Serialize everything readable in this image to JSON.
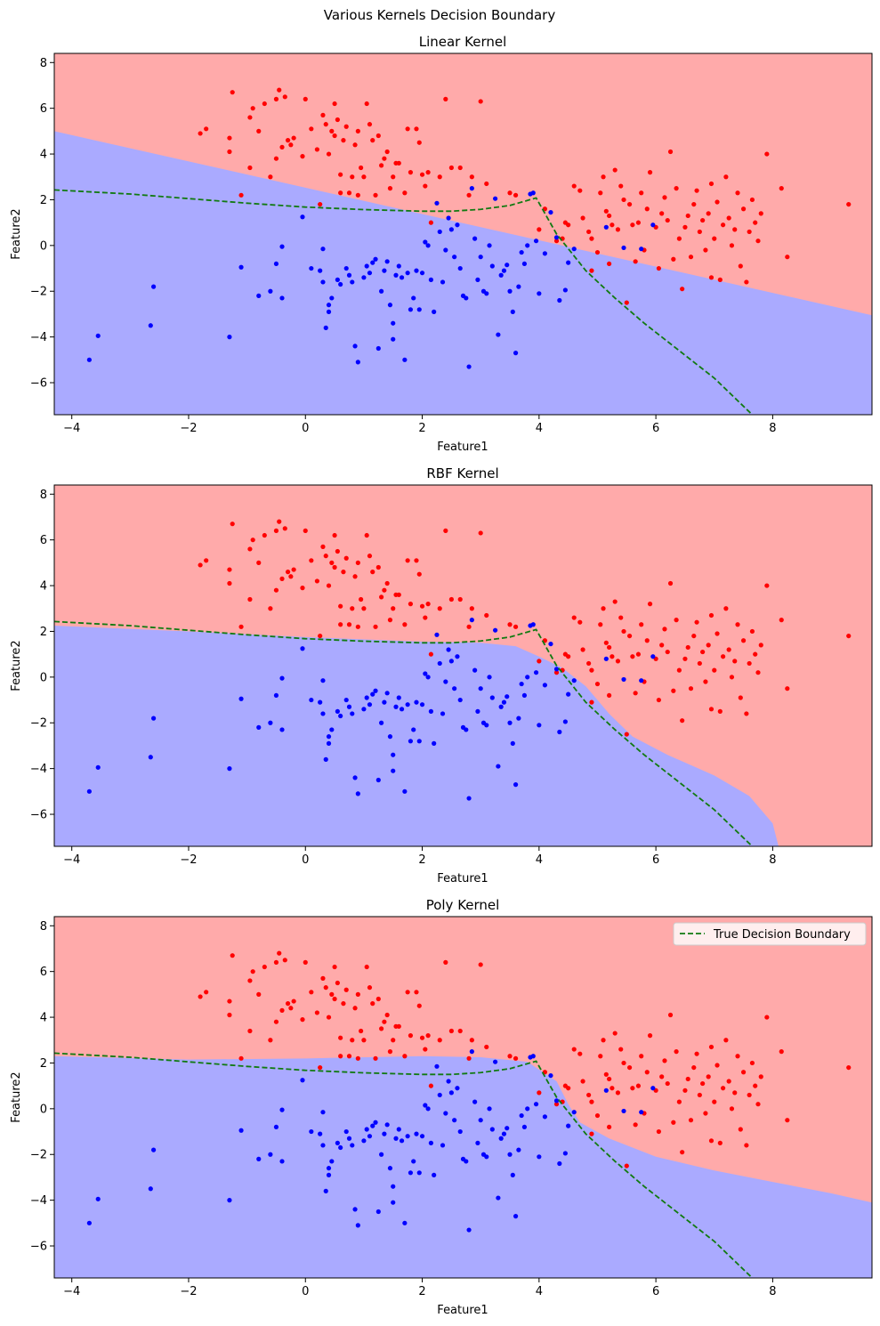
{
  "figure": {
    "suptitle": "Various Kernels Decision Boundary"
  },
  "colors": {
    "class0_region": "#aaaaff",
    "class1_region": "#ffaaaa",
    "class0_point": "#0000ff",
    "class1_point": "#ff0000",
    "true_boundary": "#117a11"
  },
  "legend": {
    "label": "True Decision Boundary",
    "placement": "upper right of bottom panel"
  },
  "chart_data": [
    {
      "type": "scatter",
      "title": "Linear Kernel",
      "xlabel": "Feature1",
      "ylabel": "Feature2",
      "xlim": [
        -4.3,
        9.7
      ],
      "ylim": [
        -7.4,
        8.4
      ],
      "xticks": [
        -4,
        -2,
        0,
        2,
        4,
        6,
        8
      ],
      "yticks": [
        -6,
        -4,
        -2,
        0,
        2,
        4,
        6,
        8
      ],
      "decision_boundary": [
        [
          -4.3,
          5.0
        ],
        [
          9.7,
          -3.05
        ]
      ]
    },
    {
      "type": "scatter",
      "title": "RBF Kernel",
      "xlabel": "Feature1",
      "ylabel": "Feature2",
      "xlim": [
        -4.3,
        9.7
      ],
      "ylim": [
        -7.4,
        8.4
      ],
      "xticks": [
        -4,
        -2,
        0,
        2,
        4,
        6,
        8
      ],
      "yticks": [
        -6,
        -4,
        -2,
        0,
        2,
        4,
        6,
        8
      ],
      "decision_boundary": [
        [
          -4.3,
          2.25
        ],
        [
          -2,
          2.0
        ],
        [
          0,
          1.75
        ],
        [
          2,
          1.55
        ],
        [
          3,
          1.5
        ],
        [
          3.6,
          1.35
        ],
        [
          4.0,
          0.9
        ],
        [
          4.4,
          0.4
        ],
        [
          4.8,
          -0.4
        ],
        [
          5.2,
          -1.6
        ],
        [
          5.6,
          -2.6
        ],
        [
          6.2,
          -3.4
        ],
        [
          7.0,
          -4.3
        ],
        [
          7.6,
          -5.2
        ],
        [
          8.0,
          -6.4
        ],
        [
          8.1,
          -7.4
        ]
      ]
    },
    {
      "type": "scatter",
      "title": "Poly Kernel",
      "xlabel": "Feature1",
      "ylabel": "Feature2",
      "xlim": [
        -4.3,
        9.7
      ],
      "ylim": [
        -7.4,
        8.4
      ],
      "xticks": [
        -4,
        -2,
        0,
        2,
        4,
        6,
        8
      ],
      "yticks": [
        -6,
        -4,
        -2,
        0,
        2,
        4,
        6,
        8
      ],
      "decision_boundary": [
        [
          -4.3,
          2.3
        ],
        [
          -2,
          2.15
        ],
        [
          0,
          2.2
        ],
        [
          2,
          2.3
        ],
        [
          3,
          2.25
        ],
        [
          3.8,
          2.05
        ],
        [
          4.3,
          1.2
        ],
        [
          4.5,
          0.2
        ],
        [
          4.7,
          -0.6
        ],
        [
          5.2,
          -1.3
        ],
        [
          6,
          -2.1
        ],
        [
          7,
          -2.7
        ],
        [
          8,
          -3.2
        ],
        [
          9,
          -3.7
        ],
        [
          9.7,
          -4.1
        ]
      ]
    }
  ],
  "true_boundary": [
    [
      -4.3,
      2.43
    ],
    [
      -3,
      2.25
    ],
    [
      -2,
      2.05
    ],
    [
      -1,
      1.85
    ],
    [
      0,
      1.68
    ],
    [
      1,
      1.57
    ],
    [
      2,
      1.5
    ],
    [
      2.5,
      1.5
    ],
    [
      3,
      1.58
    ],
    [
      3.5,
      1.75
    ],
    [
      3.95,
      2.08
    ],
    [
      4.3,
      0.5
    ],
    [
      4.8,
      -1.1
    ],
    [
      5.3,
      -2.3
    ],
    [
      5.8,
      -3.4
    ],
    [
      6.4,
      -4.6
    ],
    [
      7.0,
      -5.8
    ],
    [
      7.65,
      -7.4
    ]
  ],
  "points": {
    "red": [
      [
        -1.8,
        4.9
      ],
      [
        -1.7,
        5.1
      ],
      [
        -1.3,
        4.7
      ],
      [
        -1.3,
        4.1
      ],
      [
        -1.25,
        6.7
      ],
      [
        -1.1,
        2.2
      ],
      [
        -0.95,
        3.4
      ],
      [
        -0.95,
        5.6
      ],
      [
        -0.9,
        6.0
      ],
      [
        -0.8,
        5.0
      ],
      [
        -0.7,
        6.2
      ],
      [
        -0.6,
        3.0
      ],
      [
        -0.5,
        6.4
      ],
      [
        -0.5,
        3.8
      ],
      [
        -0.45,
        6.8
      ],
      [
        -0.4,
        4.3
      ],
      [
        -0.35,
        6.5
      ],
      [
        -0.3,
        4.6
      ],
      [
        -0.25,
        4.4
      ],
      [
        -0.2,
        4.7
      ],
      [
        -0.05,
        3.9
      ],
      [
        0.0,
        6.4
      ],
      [
        0.1,
        5.1
      ],
      [
        0.2,
        4.2
      ],
      [
        0.25,
        1.8
      ],
      [
        0.3,
        5.7
      ],
      [
        0.35,
        5.3
      ],
      [
        0.4,
        4.0
      ],
      [
        0.45,
        5.0
      ],
      [
        0.5,
        6.2
      ],
      [
        0.5,
        4.8
      ],
      [
        0.55,
        5.5
      ],
      [
        0.6,
        2.3
      ],
      [
        0.6,
        3.1
      ],
      [
        0.65,
        4.6
      ],
      [
        0.7,
        5.2
      ],
      [
        0.75,
        2.3
      ],
      [
        0.8,
        3.0
      ],
      [
        0.85,
        4.4
      ],
      [
        0.9,
        2.2
      ],
      [
        0.9,
        5.0
      ],
      [
        0.95,
        3.4
      ],
      [
        1.0,
        3.0
      ],
      [
        1.05,
        6.2
      ],
      [
        1.1,
        5.3
      ],
      [
        1.15,
        4.6
      ],
      [
        1.2,
        2.2
      ],
      [
        1.25,
        4.8
      ],
      [
        1.3,
        3.5
      ],
      [
        1.35,
        3.8
      ],
      [
        1.4,
        4.1
      ],
      [
        1.45,
        2.5
      ],
      [
        1.5,
        3.0
      ],
      [
        1.55,
        3.6
      ],
      [
        1.6,
        3.6
      ],
      [
        1.7,
        2.3
      ],
      [
        1.75,
        5.1
      ],
      [
        1.8,
        3.2
      ],
      [
        1.9,
        5.1
      ],
      [
        1.95,
        4.5
      ],
      [
        2.0,
        3.1
      ],
      [
        2.05,
        2.6
      ],
      [
        2.1,
        3.2
      ],
      [
        2.15,
        1.0
      ],
      [
        2.3,
        3.0
      ],
      [
        2.4,
        6.4
      ],
      [
        2.5,
        3.4
      ],
      [
        2.65,
        3.4
      ],
      [
        2.8,
        2.2
      ],
      [
        2.85,
        3.0
      ],
      [
        3.0,
        6.3
      ],
      [
        3.1,
        2.7
      ],
      [
        3.5,
        2.3
      ],
      [
        3.6,
        2.2
      ],
      [
        4.0,
        0.7
      ],
      [
        4.1,
        1.6
      ],
      [
        4.3,
        0.2
      ],
      [
        4.4,
        0.3
      ],
      [
        4.45,
        1.0
      ],
      [
        4.5,
        0.9
      ],
      [
        4.6,
        2.6
      ],
      [
        4.7,
        2.4
      ],
      [
        4.75,
        1.2
      ],
      [
        4.85,
        0.6
      ],
      [
        4.9,
        0.3
      ],
      [
        5.0,
        -0.3
      ],
      [
        5.05,
        2.3
      ],
      [
        5.1,
        3.0
      ],
      [
        5.15,
        1.5
      ],
      [
        5.2,
        1.3
      ],
      [
        5.25,
        0.9
      ],
      [
        5.3,
        3.3
      ],
      [
        5.35,
        0.7
      ],
      [
        5.4,
        2.6
      ],
      [
        5.45,
        2.0
      ],
      [
        5.5,
        -2.5
      ],
      [
        5.55,
        1.8
      ],
      [
        5.6,
        0.9
      ],
      [
        5.65,
        -0.7
      ],
      [
        5.7,
        1.0
      ],
      [
        5.75,
        2.3
      ],
      [
        5.8,
        -0.2
      ],
      [
        5.85,
        1.6
      ],
      [
        5.9,
        3.2
      ],
      [
        6.0,
        0.8
      ],
      [
        6.05,
        -1.0
      ],
      [
        6.1,
        1.4
      ],
      [
        6.15,
        2.1
      ],
      [
        6.2,
        1.1
      ],
      [
        6.25,
        4.1
      ],
      [
        6.3,
        -0.6
      ],
      [
        6.35,
        2.5
      ],
      [
        6.4,
        0.3
      ],
      [
        6.45,
        -1.9
      ],
      [
        6.5,
        0.8
      ],
      [
        6.55,
        1.3
      ],
      [
        6.6,
        -0.5
      ],
      [
        6.65,
        1.8
      ],
      [
        6.7,
        2.4
      ],
      [
        6.75,
        0.6
      ],
      [
        6.8,
        1.1
      ],
      [
        6.85,
        -0.2
      ],
      [
        6.9,
        1.4
      ],
      [
        6.95,
        2.7
      ],
      [
        7.0,
        0.3
      ],
      [
        7.05,
        1.9
      ],
      [
        7.1,
        -1.5
      ],
      [
        7.15,
        0.9
      ],
      [
        7.2,
        3.0
      ],
      [
        7.25,
        1.2
      ],
      [
        7.3,
        0.0
      ],
      [
        7.35,
        0.7
      ],
      [
        7.4,
        2.3
      ],
      [
        7.45,
        -0.9
      ],
      [
        7.5,
        1.6
      ],
      [
        7.55,
        -1.6
      ],
      [
        7.6,
        0.6
      ],
      [
        7.65,
        2.0
      ],
      [
        7.7,
        1.0
      ],
      [
        7.75,
        0.2
      ],
      [
        7.8,
        1.4
      ],
      [
        7.9,
        4.0
      ],
      [
        8.15,
        2.5
      ],
      [
        8.25,
        -0.5
      ],
      [
        9.3,
        1.8
      ],
      [
        6.95,
        -1.4
      ],
      [
        5.2,
        -0.8
      ],
      [
        4.9,
        -1.1
      ]
    ],
    "blue": [
      [
        -3.7,
        -5.0
      ],
      [
        -3.55,
        -3.95
      ],
      [
        -2.65,
        -3.5
      ],
      [
        -2.6,
        -1.8
      ],
      [
        -1.3,
        -4.0
      ],
      [
        -1.1,
        -0.95
      ],
      [
        -0.8,
        -2.2
      ],
      [
        -0.6,
        -2.0
      ],
      [
        -0.5,
        -0.8
      ],
      [
        -0.4,
        -2.3
      ],
      [
        -0.4,
        -0.05
      ],
      [
        -0.05,
        1.25
      ],
      [
        0.1,
        -1.0
      ],
      [
        0.25,
        -1.1
      ],
      [
        0.3,
        -0.15
      ],
      [
        0.3,
        -1.6
      ],
      [
        0.35,
        -3.6
      ],
      [
        0.4,
        -2.6
      ],
      [
        0.4,
        -2.9
      ],
      [
        0.45,
        -2.3
      ],
      [
        0.55,
        -1.5
      ],
      [
        0.6,
        -1.7
      ],
      [
        0.7,
        -1.0
      ],
      [
        0.75,
        -1.3
      ],
      [
        0.8,
        -1.6
      ],
      [
        0.85,
        -4.4
      ],
      [
        0.9,
        -5.1
      ],
      [
        1.0,
        -1.4
      ],
      [
        1.05,
        -0.9
      ],
      [
        1.1,
        -1.2
      ],
      [
        1.15,
        -0.75
      ],
      [
        1.2,
        -0.6
      ],
      [
        1.25,
        -4.5
      ],
      [
        1.3,
        -2.0
      ],
      [
        1.35,
        -1.1
      ],
      [
        1.4,
        -0.7
      ],
      [
        1.45,
        -2.6
      ],
      [
        1.5,
        -3.4
      ],
      [
        1.5,
        -4.1
      ],
      [
        1.55,
        -1.3
      ],
      [
        1.6,
        -0.9
      ],
      [
        1.65,
        -1.4
      ],
      [
        1.7,
        -5.0
      ],
      [
        1.75,
        -1.2
      ],
      [
        1.8,
        -2.8
      ],
      [
        1.85,
        -2.3
      ],
      [
        1.9,
        -1.1
      ],
      [
        1.95,
        -2.8
      ],
      [
        2.0,
        -1.2
      ],
      [
        2.05,
        0.15
      ],
      [
        2.1,
        0.0
      ],
      [
        2.15,
        -1.5
      ],
      [
        2.2,
        -2.9
      ],
      [
        2.25,
        1.85
      ],
      [
        2.3,
        0.6
      ],
      [
        2.35,
        -1.6
      ],
      [
        2.4,
        -0.2
      ],
      [
        2.45,
        1.2
      ],
      [
        2.5,
        0.7
      ],
      [
        2.55,
        -0.5
      ],
      [
        2.6,
        0.9
      ],
      [
        2.65,
        -1.0
      ],
      [
        2.7,
        -2.2
      ],
      [
        2.75,
        -2.3
      ],
      [
        2.8,
        -5.3
      ],
      [
        2.85,
        2.5
      ],
      [
        2.9,
        0.3
      ],
      [
        2.95,
        -1.5
      ],
      [
        3.0,
        -0.5
      ],
      [
        3.05,
        -2.0
      ],
      [
        3.1,
        -2.1
      ],
      [
        3.15,
        0.0
      ],
      [
        3.2,
        -0.9
      ],
      [
        3.25,
        2.05
      ],
      [
        3.3,
        -3.9
      ],
      [
        3.35,
        -1.3
      ],
      [
        3.4,
        -1.1
      ],
      [
        3.45,
        -0.85
      ],
      [
        3.5,
        -2.0
      ],
      [
        3.55,
        -2.9
      ],
      [
        3.6,
        -4.7
      ],
      [
        3.65,
        -1.8
      ],
      [
        3.7,
        -0.3
      ],
      [
        3.75,
        -0.8
      ],
      [
        3.8,
        0.0
      ],
      [
        3.85,
        2.25
      ],
      [
        3.9,
        2.3
      ],
      [
        3.95,
        0.2
      ],
      [
        4.0,
        -2.1
      ],
      [
        4.1,
        -0.35
      ],
      [
        4.2,
        1.45
      ],
      [
        4.3,
        0.35
      ],
      [
        4.35,
        -2.4
      ],
      [
        4.45,
        -1.95
      ],
      [
        4.5,
        -0.75
      ],
      [
        4.6,
        -0.15
      ],
      [
        5.15,
        0.8
      ],
      [
        5.45,
        -0.1
      ],
      [
        5.75,
        -0.15
      ],
      [
        5.95,
        0.9
      ]
    ]
  }
}
